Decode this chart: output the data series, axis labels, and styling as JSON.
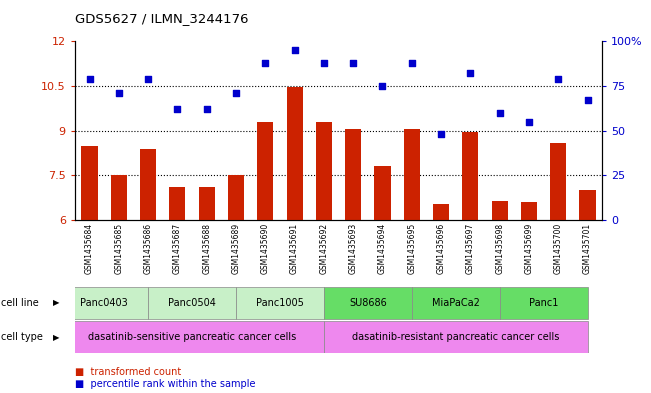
{
  "title": "GDS5627 / ILMN_3244176",
  "samples": [
    "GSM1435684",
    "GSM1435685",
    "GSM1435686",
    "GSM1435687",
    "GSM1435688",
    "GSM1435689",
    "GSM1435690",
    "GSM1435691",
    "GSM1435692",
    "GSM1435693",
    "GSM1435694",
    "GSM1435695",
    "GSM1435696",
    "GSM1435697",
    "GSM1435698",
    "GSM1435699",
    "GSM1435700",
    "GSM1435701"
  ],
  "bar_values": [
    8.5,
    7.5,
    8.4,
    7.1,
    7.1,
    7.5,
    9.3,
    10.47,
    9.3,
    9.05,
    7.8,
    9.05,
    6.55,
    8.95,
    6.65,
    6.6,
    8.6,
    7.0
  ],
  "scatter_values": [
    79,
    71,
    79,
    62,
    62,
    71,
    88,
    95,
    88,
    88,
    75,
    88,
    48,
    82,
    60,
    55,
    79,
    67
  ],
  "ylim_left": [
    6,
    12
  ],
  "ylim_right": [
    0,
    100
  ],
  "yticks_left": [
    6,
    7.5,
    9,
    10.5,
    12
  ],
  "yticks_right": [
    0,
    25,
    50,
    75,
    100
  ],
  "ytick_labels_right": [
    "0",
    "25",
    "50",
    "75",
    "100%"
  ],
  "bar_color": "#cc2200",
  "scatter_color": "#0000cc",
  "dotted_line_y": [
    7.5,
    9.0,
    10.5
  ],
  "cell_lines": [
    {
      "label": "Panc0403",
      "start": 0,
      "end": 2,
      "color": "#c8f0c8"
    },
    {
      "label": "Panc0504",
      "start": 3,
      "end": 5,
      "color": "#c8f0c8"
    },
    {
      "label": "Panc1005",
      "start": 6,
      "end": 8,
      "color": "#c8f0c8"
    },
    {
      "label": "SU8686",
      "start": 9,
      "end": 11,
      "color": "#66dd66"
    },
    {
      "label": "MiaPaCa2",
      "start": 12,
      "end": 14,
      "color": "#66dd66"
    },
    {
      "label": "Panc1",
      "start": 15,
      "end": 17,
      "color": "#66dd66"
    }
  ],
  "cell_types": [
    {
      "label": "dasatinib-sensitive pancreatic cancer cells",
      "start": 0,
      "end": 8,
      "color": "#ee88ee"
    },
    {
      "label": "dasatinib-resistant pancreatic cancer cells",
      "start": 9,
      "end": 17,
      "color": "#ee88ee"
    }
  ],
  "legend_items": [
    {
      "label": "transformed count",
      "color": "#cc2200"
    },
    {
      "label": "percentile rank within the sample",
      "color": "#0000cc"
    }
  ],
  "cell_line_label": "cell line",
  "cell_type_label": "cell type"
}
